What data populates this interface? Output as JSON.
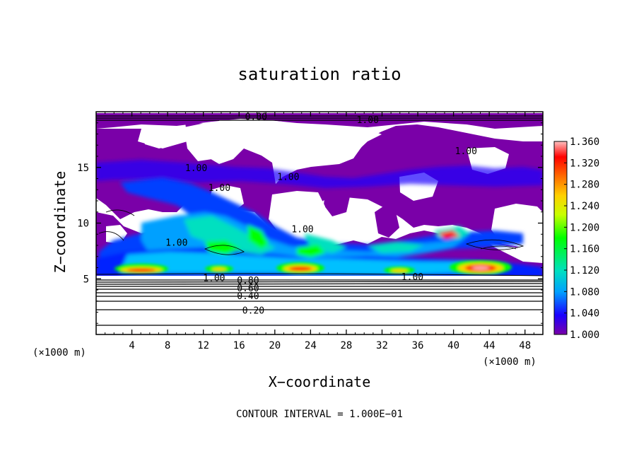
{
  "chart_data": {
    "type": "heatmap",
    "title": "saturation ratio",
    "xlabel": "X−coordinate",
    "ylabel": "Z−coordinate",
    "x_unit": "(×1000 m)",
    "y_unit": "(×1000 m)",
    "footer": "CONTOUR INTERVAL = 1.000E−01",
    "xlim": [
      0,
      50
    ],
    "ylim": [
      0,
      20
    ],
    "x_ticks": [
      "4",
      "8",
      "12",
      "16",
      "20",
      "24",
      "28",
      "32",
      "36",
      "40",
      "44",
      "48"
    ],
    "y_ticks": [
      "5",
      "10",
      "15"
    ],
    "colorbar": {
      "min": 1.0,
      "max": 1.36,
      "ticks": [
        "1.360",
        "1.320",
        "1.280",
        "1.240",
        "1.200",
        "1.160",
        "1.120",
        "1.080",
        "1.040",
        "1.000"
      ]
    },
    "contour_interval": 0.1,
    "contour_labels": [
      {
        "text": "0.20",
        "x": 17.6,
        "z": 2.2
      },
      {
        "text": "0.40",
        "x": 17.0,
        "z": 3.5
      },
      {
        "text": "0.60",
        "x": 17.0,
        "z": 4.2
      },
      {
        "text": "0.80",
        "x": 17.0,
        "z": 4.9
      },
      {
        "text": "1.00",
        "x": 13.2,
        "z": 5.1
      },
      {
        "text": "1.00",
        "x": 35.4,
        "z": 5.2
      },
      {
        "text": "1.00",
        "x": 9.0,
        "z": 8.3
      },
      {
        "text": "1.00",
        "x": 13.8,
        "z": 13.2
      },
      {
        "text": "1.00",
        "x": 11.2,
        "z": 15.0
      },
      {
        "text": "1.00",
        "x": 23.1,
        "z": 9.5
      },
      {
        "text": "1.00",
        "x": 21.5,
        "z": 14.2
      },
      {
        "text": "1.00",
        "x": 30.4,
        "z": 19.3
      },
      {
        "text": "1.00",
        "x": 41.4,
        "z": 16.5
      },
      {
        "text": "0.80",
        "x": 17.9,
        "z": 19.6
      }
    ],
    "colorscale": [
      "#7a00a8",
      "#1a00ff",
      "#00a0ff",
      "#00e0c0",
      "#00ff00",
      "#c8ff00",
      "#ffd000",
      "#ff6000",
      "#ff0000",
      "#ffc0c0"
    ]
  }
}
